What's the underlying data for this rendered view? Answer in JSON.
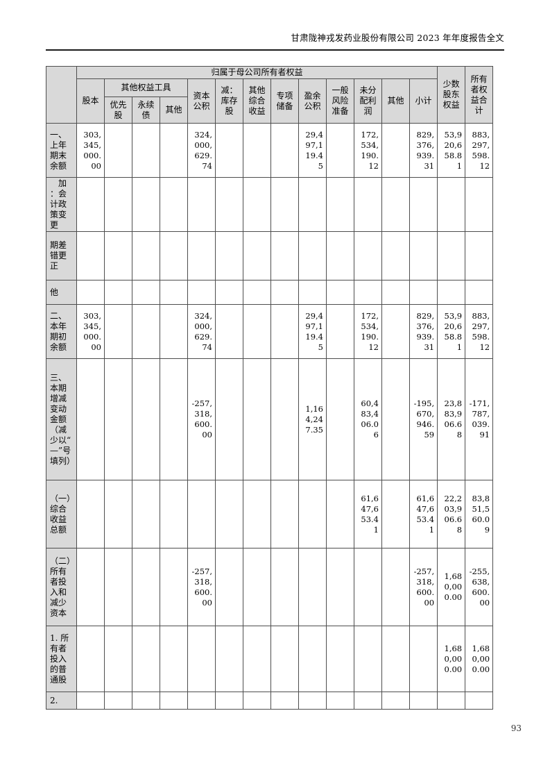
{
  "doc_header": {
    "title": "甘肃陇神戎发药业股份有限公司 2023 年年度报告全文"
  },
  "footer": {
    "page_number": "93"
  },
  "table": {
    "header": {
      "parent_equity": "归属于母公司所有者权益",
      "share_capital": "股本",
      "other_equity_instruments": "其他权益工具",
      "preferred_shares": "优先股",
      "perpetual_bonds": "永续债",
      "other_instruments": "其他",
      "capital_reserve": "资本公积",
      "less_treasury_shares": "减：库存股",
      "other_comprehensive_income": "其他综合收益",
      "special_reserve": "专项储备",
      "surplus_reserve": "盈余公积",
      "general_risk_reserve": "一般风险准备",
      "retained_profit": "未分配利润",
      "other_col": "其他",
      "subtotal": "小计",
      "minority_interest": "少数股东权益",
      "total_equity": "所有者权益合计"
    },
    "rows": [
      {
        "label": "一、上年期末余额",
        "cells": [
          "303,345,000.00",
          "",
          "",
          "",
          "324,000,629.74",
          "",
          "",
          "",
          "29,497,119.45",
          "",
          "172,534,190.12",
          "",
          "829,376,939.31",
          "53,920,658.81",
          "883,297,598.12"
        ]
      },
      {
        "label": "　加：会计政策变更",
        "cells": [
          "",
          "",
          "",
          "",
          "",
          "",
          "",
          "",
          "",
          "",
          "",
          "",
          "",
          "",
          ""
        ]
      },
      {
        "label": "期差错更正",
        "cells": [
          "",
          "",
          "",
          "",
          "",
          "",
          "",
          "",
          "",
          "",
          "",
          "",
          "",
          "",
          ""
        ]
      },
      {
        "label": "他",
        "cells": [
          "",
          "",
          "",
          "",
          "",
          "",
          "",
          "",
          "",
          "",
          "",
          "",
          "",
          "",
          ""
        ]
      },
      {
        "label": "二、本年期初余额",
        "cells": [
          "303,345,000.00",
          "",
          "",
          "",
          "324,000,629.74",
          "",
          "",
          "",
          "29,497,119.45",
          "",
          "172,534,190.12",
          "",
          "829,376,939.31",
          "53,920,658.81",
          "883,297,598.12"
        ]
      },
      {
        "label": "三、本期增减变动金额（减少以“—”号填列）",
        "cells": [
          "",
          "",
          "",
          "",
          "-257,318,600.00",
          "",
          "",
          "",
          "1,164,247.35",
          "",
          "60,483,406.06",
          "",
          "-195,670,946.59",
          "23,883,906.68",
          "-171,787,039.91"
        ]
      },
      {
        "label": "（一）综合收益总额",
        "cells": [
          "",
          "",
          "",
          "",
          "",
          "",
          "",
          "",
          "",
          "",
          "61,647,653.41",
          "",
          "61,647,653.41",
          "22,203,906.68",
          "83,851,560.09"
        ]
      },
      {
        "label": "（二）所有者投入和减少资本",
        "cells": [
          "",
          "",
          "",
          "",
          "-257,318,600.00",
          "",
          "",
          "",
          "",
          "",
          "",
          "",
          "-257,318,600.00",
          "1,680,000.00",
          "-255,638,600.00"
        ]
      },
      {
        "label": "1. 所有者投入的普通股",
        "cells": [
          "",
          "",
          "",
          "",
          "",
          "",
          "",
          "",
          "",
          "",
          "",
          "",
          "",
          "1,680,000.00",
          "1,680,000.00"
        ]
      },
      {
        "label": "2.",
        "cells": [
          "",
          "",
          "",
          "",
          "",
          "",
          "",
          "",
          "",
          "",
          "",
          "",
          "",
          "",
          ""
        ]
      }
    ]
  }
}
